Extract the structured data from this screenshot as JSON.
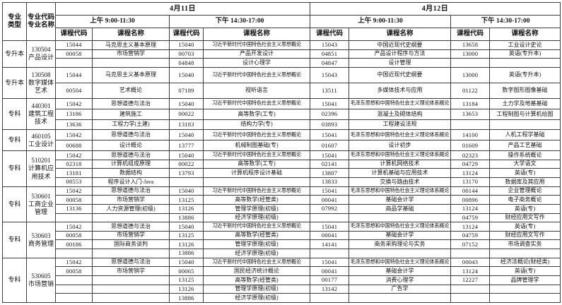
{
  "table": {
    "header": {
      "major_type": "专业\n类型",
      "major_code_name": "专业代码\n专业名称",
      "dates": [
        "4月11日",
        "4月12日"
      ],
      "sessions": [
        "上午 9:00-11:30",
        "下午 14:30-17:00"
      ],
      "course_code": "课程代码",
      "course_name": "课程名称"
    },
    "groups": [
      {
        "type": "专升本",
        "major": "130504\n产品设计",
        "rows": [
          [
            "15044",
            "马克思主义基本原理",
            "15040",
            "习近平新时代中国特色社会主义思想概论",
            "15043",
            "中国近现代史纲要",
            "13658",
            "工业设计史论"
          ],
          [
            "00058",
            "市场营销学",
            "00703",
            "产品开发设计",
            "04851",
            "产品设计程序与方法",
            "13000",
            "英语(专升本)"
          ],
          [
            "",
            "",
            "04848",
            "设计心理学",
            "04847",
            "设计管理",
            "",
            ""
          ]
        ]
      },
      {
        "type": "专升本",
        "major": "130508\n数字媒体\n艺术",
        "rows": [
          [
            "15044",
            "马克思主义基本原理",
            "15040",
            "习近平新时代中国特色社会主义思想概论",
            "15043",
            "中国近现代史纲要",
            "13000",
            "英语(专升本)"
          ],
          [
            "00504",
            "艺术概论",
            "07189",
            "视听语言",
            "13511",
            "多媒体技术与应用",
            "01122",
            "数字图形图像基础"
          ]
        ]
      },
      {
        "type": "专科",
        "major": "440301\n建筑工程\n技术",
        "rows": [
          [
            "15042",
            "思想道德与法治",
            "15040",
            "习近平新时代中国特色社会主义思想概论",
            "15041",
            "毛泽东思想和中国特色社会主义理论体系概论",
            "13184",
            "土力学及地基基础"
          ],
          [
            "13186",
            "建筑施工",
            "00022",
            "高等数学(工专)",
            "02396",
            "混凝土及砌体结构",
            "13653",
            "工程制图与计算机绘图"
          ],
          [
            "13636",
            "工程力学(土建)",
            "13183",
            "结构力学(专)",
            "03893",
            "工程建设法规",
            "",
            ""
          ]
        ]
      },
      {
        "type": "专科",
        "major": "460105\n工业设计",
        "rows": [
          [
            "15042",
            "思想道德与法治",
            "15040",
            "习近平新时代中国特色社会主义思想概论",
            "15041",
            "毛泽东思想和中国特色社会主义理论体系概论",
            "14100",
            "人机工程学基础"
          ],
          [
            "00688",
            "设计概论",
            "13777",
            "机械制图基础(专)",
            "01607",
            "设计初步",
            "01609",
            "产品工艺基础"
          ]
        ]
      },
      {
        "type": "专科",
        "major": "510201\n计算机应\n用技术",
        "rows": [
          [
            "15042",
            "思想道德与法治",
            "15040",
            "习近平新时代中国特色社会主义思想概论",
            "15041",
            "毛泽东思想和中国特色社会主义理论体系概论",
            "02323",
            "操作系统概论"
          ],
          [
            "02318",
            "计算机组成原理",
            "00022",
            "高等数学(工专)",
            "02141",
            "计算机网络技术",
            "04729",
            "大学语文"
          ],
          [
            "13181",
            "数据结构",
            "13793",
            "计算机程序设计基础",
            "13807",
            "计算机基础与应用技术",
            "13124",
            "英语(专)"
          ],
          [
            "08553",
            "程序设计入门-Java",
            "",
            "",
            "13833",
            "交换与路由技术",
            "13170",
            "数据库及其应用"
          ]
        ]
      },
      {
        "type": "专科",
        "major": "530601\n工商企业\n管理",
        "rows": [
          [
            "15042",
            "思想道德与法治",
            "15040",
            "习近平新时代中国特色社会主义思想概论",
            "15041",
            "毛泽东思想和中国特色社会主义理论体系概论",
            "00144",
            "企业管理概论"
          ],
          [
            "00058",
            "市场营销学",
            "13125",
            "高等数学(经管类)",
            "00041",
            "基础会计学",
            "00896",
            "电子商务概论"
          ],
          [
            "13136",
            "人力资源管理(初级)",
            "13126",
            "管理学原理(初级)",
            "07992",
            "商品学基础",
            "13124",
            "英语(专)"
          ],
          [
            "",
            "",
            "13886",
            "经济学原理(初级)",
            "",
            "",
            "04759",
            "财经应用文写作"
          ]
        ]
      },
      {
        "type": "专科",
        "major": "530603\n商务管理",
        "rows": [
          [
            "15042",
            "思想道德与法治",
            "15040",
            "习近平新时代中国特色社会主义思想概论",
            "15041",
            "毛泽东思想和中国特色社会主义理论体系概论",
            "13124",
            "英语(专)"
          ],
          [
            "00058",
            "市场营销学",
            "13125",
            "高等数学(经管类)",
            "00041",
            "基础会计学",
            "04759",
            "财经应用文写作"
          ],
          [
            "00186",
            "国际商务谈判",
            "13126",
            "管理学原理(初级)",
            "14141",
            "商务采购理论与实务",
            "07152",
            "市场调查实务"
          ],
          [
            "",
            "",
            "13886",
            "经济学原理(初级)",
            "",
            "",
            "",
            ""
          ]
        ]
      },
      {
        "type": "专科",
        "major": "530605\n市场营销",
        "rows": [
          [
            "15042",
            "思想道德与法治",
            "15040",
            "习近平新时代中国特色社会主义思想概论",
            "15041",
            "毛泽东思想和中国特色社会主义理论体系概论",
            "00043",
            "经济法概论(财经类)"
          ],
          [
            "00058",
            "市场营销学",
            "00065",
            "国民经济统计概论",
            "00041",
            "基础会计学",
            "13124",
            "英语(专)"
          ],
          [
            "",
            "",
            "13125",
            "高等数学(经管类)",
            "00177",
            "消费心理学",
            "12227",
            "品牌管理学"
          ],
          [
            "",
            "",
            "13126",
            "管理学原理(初级)",
            "13142",
            "广告学",
            "",
            ""
          ],
          [
            "",
            "",
            "13886",
            "经济学原理(初级)",
            "",
            "",
            "",
            ""
          ]
        ]
      }
    ]
  }
}
